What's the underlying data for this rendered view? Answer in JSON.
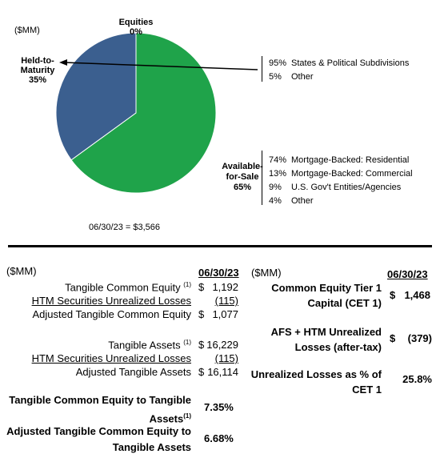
{
  "top_panel": {
    "units": "($MM)",
    "pie_total_label": "06/30/23  =  $3,566",
    "htm_breakdown": [
      {
        "pct": "95%",
        "label": "States & Political Subdivisions"
      },
      {
        "pct": "5%",
        "label": "Other"
      }
    ],
    "afs_breakdown": [
      {
        "pct": "74%",
        "label": "Mortgage-Backed: Residential"
      },
      {
        "pct": "13%",
        "label": "Mortgage-Backed: Commercial"
      },
      {
        "pct": "9%",
        "label": "U.S. Gov't Entities/Agencies"
      },
      {
        "pct": "4%",
        "label": "Other"
      }
    ]
  },
  "chart_data": {
    "type": "pie",
    "slices": [
      {
        "name_lines": [
          "Equities"
        ],
        "pct_label": "0%",
        "value": 0,
        "color": "#2fa84f"
      },
      {
        "name_lines": [
          "Available-",
          "for-Sale"
        ],
        "pct_label": "65%",
        "value": 65,
        "color": "#1fa34a"
      },
      {
        "name_lines": [
          "Held-to-",
          "Maturity"
        ],
        "pct_label": "35%",
        "value": 35,
        "color": "#3b5f8f"
      }
    ],
    "colors": {
      "afs": "#1fa34a",
      "htm": "#3b5f8f"
    }
  },
  "left_table": {
    "units": "($MM)",
    "date_header": "06/30/23",
    "rows": [
      {
        "label": "Tangible Common Equity",
        "sup": "(1)",
        "dollar": "$",
        "value": "1,192"
      },
      {
        "label": "HTM Securities Unrealized Losses",
        "sup": "",
        "dollar": "",
        "value": "(115)"
      },
      {
        "label": "Adjusted Tangible Common Equity",
        "sup": "",
        "dollar": "$",
        "value": "1,077"
      },
      {
        "label": "Tangible Assets",
        "sup": "(1)",
        "dollar": "$",
        "value": "16,229"
      },
      {
        "label": "HTM Securities Unrealized Losses",
        "sup": "",
        "dollar": "",
        "value": "(115)"
      },
      {
        "label": "Adjusted Tangible Assets",
        "sup": "",
        "dollar": "$",
        "value": "16,114"
      }
    ],
    "ratios": [
      {
        "line1": "Tangible Common Equity to Tangible",
        "line2": "Assets",
        "sup": "(1)",
        "value": "7.35%"
      },
      {
        "line1": "Adjusted Tangible Common Equity to",
        "line2": "Tangible Assets",
        "sup": "",
        "value": "6.68%"
      }
    ]
  },
  "right_table": {
    "units": "($MM)",
    "date_header": "06/30/23",
    "rows": [
      {
        "line1": "Common Equity Tier 1",
        "line2": "Capital (CET 1)",
        "dollar": "$",
        "value": "1,468"
      },
      {
        "line1": "AFS + HTM Unrealized",
        "line2": "Losses (after-tax)",
        "dollar": "$",
        "value": "(379)"
      },
      {
        "line1": "Unrealized Losses as % of",
        "line2": "CET 1",
        "dollar": "",
        "value": "25.8%"
      }
    ]
  }
}
